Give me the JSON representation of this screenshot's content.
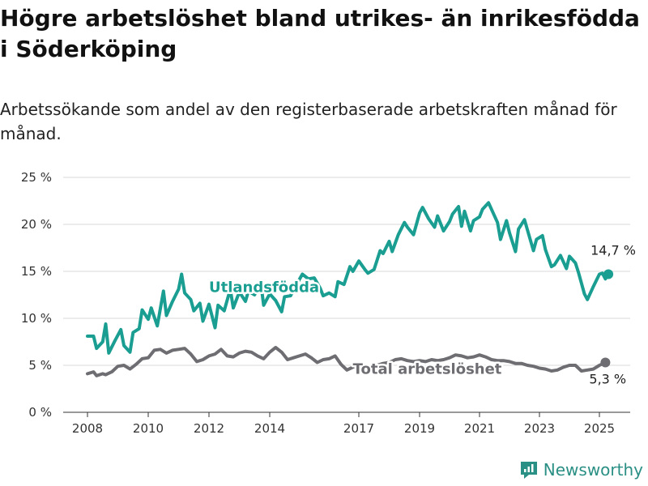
{
  "header": {
    "title": "Högre arbetslöshet bland utrikes- än inrikesfödda i Söderköping",
    "subtitle": "Arbetssökande som andel av den registerbaserade arbetskraften månad för månad."
  },
  "brand": {
    "name": "Newsworthy",
    "icon": "newsworthy-logo-icon",
    "color": "#2a8f84"
  },
  "chart_data": {
    "type": "line",
    "title": "Högre arbetslöshet bland utrikes- än inrikesfödda i Söderköping",
    "subtitle": "Arbetssökande som andel av den registerbaserade arbetskraften månad för månad.",
    "xlabel": "",
    "ylabel": "",
    "x_unit": "year",
    "x_ticks": [
      "2008",
      "2010",
      "2012",
      "2014",
      "2017",
      "2019",
      "2021",
      "2023",
      "2025"
    ],
    "y_ticks": [
      "0 %",
      "5 %",
      "10 %",
      "15 %",
      "20 %",
      "25 %"
    ],
    "xlim": [
      2007.7,
      2026.0
    ],
    "ylim": [
      0,
      25
    ],
    "grid": true,
    "legend": "inline labels",
    "series": [
      {
        "name": "Utlandsfödda",
        "color": "#1a9e92",
        "end_label": "14,7 %",
        "points": [
          [
            2008.0,
            8.1
          ],
          [
            2008.2,
            8.1
          ],
          [
            2008.3,
            6.8
          ],
          [
            2008.5,
            7.5
          ],
          [
            2008.6,
            9.4
          ],
          [
            2008.7,
            6.3
          ],
          [
            2008.9,
            7.6
          ],
          [
            2009.1,
            8.8
          ],
          [
            2009.2,
            7.1
          ],
          [
            2009.4,
            6.4
          ],
          [
            2009.5,
            8.5
          ],
          [
            2009.7,
            8.9
          ],
          [
            2009.8,
            10.9
          ],
          [
            2010.0,
            9.9
          ],
          [
            2010.1,
            11.1
          ],
          [
            2010.3,
            9.2
          ],
          [
            2010.5,
            12.9
          ],
          [
            2010.6,
            10.3
          ],
          [
            2010.8,
            11.8
          ],
          [
            2011.0,
            13.1
          ],
          [
            2011.1,
            14.7
          ],
          [
            2011.2,
            12.7
          ],
          [
            2011.4,
            12.0
          ],
          [
            2011.5,
            10.8
          ],
          [
            2011.7,
            11.6
          ],
          [
            2011.8,
            9.7
          ],
          [
            2012.0,
            11.5
          ],
          [
            2012.2,
            9.0
          ],
          [
            2012.3,
            11.4
          ],
          [
            2012.5,
            10.8
          ],
          [
            2012.7,
            13.1
          ],
          [
            2012.8,
            11.1
          ],
          [
            2013.0,
            12.8
          ],
          [
            2013.2,
            11.8
          ],
          [
            2013.3,
            12.9
          ],
          [
            2013.5,
            12.5
          ],
          [
            2013.7,
            13.9
          ],
          [
            2013.8,
            11.4
          ],
          [
            2014.0,
            12.6
          ],
          [
            2014.2,
            11.9
          ],
          [
            2014.4,
            10.7
          ],
          [
            2014.5,
            12.3
          ],
          [
            2014.7,
            12.4
          ],
          [
            2014.9,
            13.6
          ],
          [
            2015.1,
            14.7
          ],
          [
            2015.3,
            14.2
          ],
          [
            2015.5,
            14.3
          ],
          [
            2015.7,
            13.2
          ],
          [
            2015.8,
            12.4
          ],
          [
            2016.0,
            12.7
          ],
          [
            2016.2,
            12.3
          ],
          [
            2016.3,
            13.9
          ],
          [
            2016.5,
            13.6
          ],
          [
            2016.7,
            15.5
          ],
          [
            2016.8,
            15.0
          ],
          [
            2017.0,
            16.1
          ],
          [
            2017.2,
            15.2
          ],
          [
            2017.3,
            14.8
          ],
          [
            2017.5,
            15.2
          ],
          [
            2017.7,
            17.2
          ],
          [
            2017.8,
            16.9
          ],
          [
            2018.0,
            18.2
          ],
          [
            2018.1,
            17.1
          ],
          [
            2018.3,
            18.9
          ],
          [
            2018.5,
            20.2
          ],
          [
            2018.6,
            19.7
          ],
          [
            2018.8,
            18.9
          ],
          [
            2019.0,
            21.2
          ],
          [
            2019.1,
            21.8
          ],
          [
            2019.3,
            20.6
          ],
          [
            2019.5,
            19.7
          ],
          [
            2019.6,
            20.9
          ],
          [
            2019.8,
            19.3
          ],
          [
            2020.0,
            20.3
          ],
          [
            2020.1,
            21.1
          ],
          [
            2020.3,
            21.9
          ],
          [
            2020.4,
            19.8
          ],
          [
            2020.5,
            21.4
          ],
          [
            2020.7,
            19.3
          ],
          [
            2020.8,
            20.4
          ],
          [
            2021.0,
            20.8
          ],
          [
            2021.1,
            21.6
          ],
          [
            2021.3,
            22.3
          ],
          [
            2021.4,
            21.6
          ],
          [
            2021.6,
            20.2
          ],
          [
            2021.7,
            18.4
          ],
          [
            2021.9,
            20.4
          ],
          [
            2022.0,
            19.1
          ],
          [
            2022.2,
            17.1
          ],
          [
            2022.3,
            19.5
          ],
          [
            2022.5,
            20.5
          ],
          [
            2022.6,
            19.4
          ],
          [
            2022.8,
            17.2
          ],
          [
            2022.9,
            18.4
          ],
          [
            2023.1,
            18.8
          ],
          [
            2023.2,
            17.3
          ],
          [
            2023.4,
            15.5
          ],
          [
            2023.5,
            15.7
          ],
          [
            2023.7,
            16.7
          ],
          [
            2023.9,
            15.3
          ],
          [
            2024.0,
            16.6
          ],
          [
            2024.2,
            15.9
          ],
          [
            2024.3,
            14.9
          ],
          [
            2024.5,
            12.6
          ],
          [
            2024.6,
            12.0
          ],
          [
            2024.8,
            13.4
          ],
          [
            2025.0,
            14.7
          ],
          [
            2025.1,
            14.8
          ],
          [
            2025.2,
            14.2
          ],
          [
            2025.3,
            14.7
          ]
        ]
      },
      {
        "name": "Total arbetslöshet",
        "color": "#6d6d72",
        "end_label": "5,3 %",
        "points": [
          [
            2008.0,
            4.1
          ],
          [
            2008.2,
            4.3
          ],
          [
            2008.3,
            3.9
          ],
          [
            2008.5,
            4.1
          ],
          [
            2008.6,
            4.0
          ],
          [
            2008.8,
            4.3
          ],
          [
            2009.0,
            4.9
          ],
          [
            2009.2,
            5.0
          ],
          [
            2009.4,
            4.6
          ],
          [
            2009.6,
            5.1
          ],
          [
            2009.8,
            5.7
          ],
          [
            2010.0,
            5.8
          ],
          [
            2010.2,
            6.6
          ],
          [
            2010.4,
            6.7
          ],
          [
            2010.6,
            6.3
          ],
          [
            2010.8,
            6.6
          ],
          [
            2011.0,
            6.7
          ],
          [
            2011.2,
            6.8
          ],
          [
            2011.4,
            6.2
          ],
          [
            2011.6,
            5.4
          ],
          [
            2011.8,
            5.6
          ],
          [
            2012.0,
            6.0
          ],
          [
            2012.2,
            6.2
          ],
          [
            2012.4,
            6.7
          ],
          [
            2012.6,
            6.0
          ],
          [
            2012.8,
            5.9
          ],
          [
            2013.0,
            6.3
          ],
          [
            2013.2,
            6.5
          ],
          [
            2013.4,
            6.4
          ],
          [
            2013.6,
            6.0
          ],
          [
            2013.8,
            5.7
          ],
          [
            2014.0,
            6.4
          ],
          [
            2014.2,
            6.9
          ],
          [
            2014.4,
            6.4
          ],
          [
            2014.6,
            5.6
          ],
          [
            2014.8,
            5.8
          ],
          [
            2015.0,
            6.0
          ],
          [
            2015.2,
            6.2
          ],
          [
            2015.4,
            5.8
          ],
          [
            2015.6,
            5.3
          ],
          [
            2015.8,
            5.6
          ],
          [
            2016.0,
            5.7
          ],
          [
            2016.2,
            6.0
          ],
          [
            2016.4,
            5.1
          ],
          [
            2016.6,
            4.5
          ],
          [
            2016.8,
            4.8
          ],
          [
            2017.0,
            4.9
          ],
          [
            2017.2,
            5.0
          ],
          [
            2017.4,
            4.8
          ],
          [
            2017.6,
            5.0
          ],
          [
            2017.8,
            5.2
          ],
          [
            2018.0,
            5.3
          ],
          [
            2018.2,
            5.6
          ],
          [
            2018.4,
            5.7
          ],
          [
            2018.6,
            5.5
          ],
          [
            2018.8,
            5.4
          ],
          [
            2019.0,
            5.5
          ],
          [
            2019.2,
            5.4
          ],
          [
            2019.4,
            5.6
          ],
          [
            2019.6,
            5.5
          ],
          [
            2019.8,
            5.6
          ],
          [
            2020.0,
            5.8
          ],
          [
            2020.2,
            6.1
          ],
          [
            2020.4,
            6.0
          ],
          [
            2020.6,
            5.8
          ],
          [
            2020.8,
            5.9
          ],
          [
            2021.0,
            6.1
          ],
          [
            2021.2,
            5.9
          ],
          [
            2021.4,
            5.6
          ],
          [
            2021.6,
            5.5
          ],
          [
            2021.8,
            5.5
          ],
          [
            2022.0,
            5.4
          ],
          [
            2022.2,
            5.2
          ],
          [
            2022.4,
            5.2
          ],
          [
            2022.6,
            5.0
          ],
          [
            2022.8,
            4.9
          ],
          [
            2023.0,
            4.7
          ],
          [
            2023.2,
            4.6
          ],
          [
            2023.4,
            4.4
          ],
          [
            2023.6,
            4.5
          ],
          [
            2023.8,
            4.8
          ],
          [
            2024.0,
            5.0
          ],
          [
            2024.2,
            5.0
          ],
          [
            2024.4,
            4.4
          ],
          [
            2024.6,
            4.5
          ],
          [
            2024.8,
            4.6
          ],
          [
            2025.0,
            5.0
          ],
          [
            2025.2,
            5.3
          ]
        ]
      }
    ]
  }
}
